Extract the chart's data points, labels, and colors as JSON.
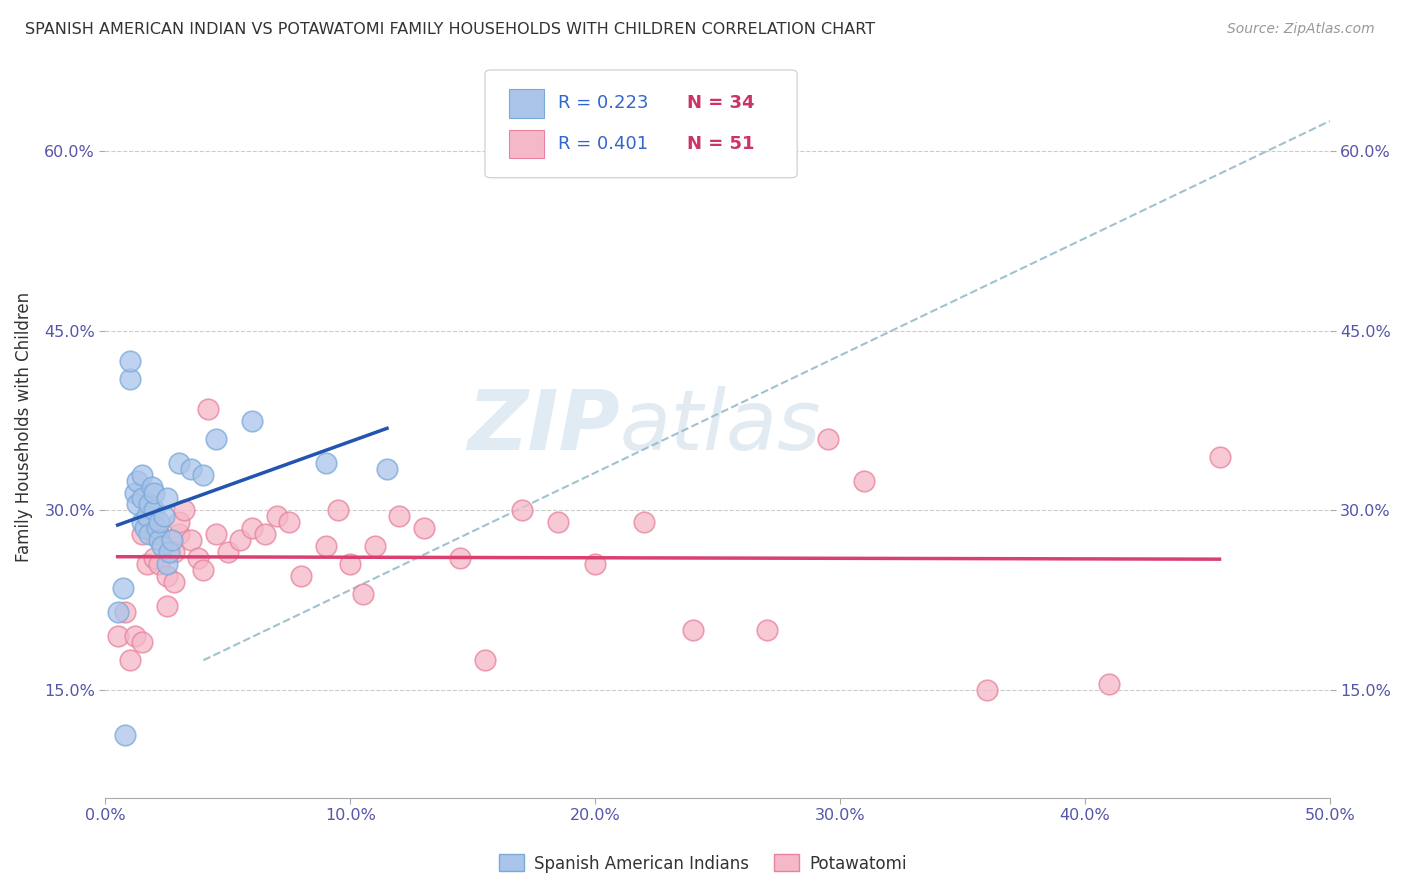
{
  "title": "SPANISH AMERICAN INDIAN VS POTAWATOMI FAMILY HOUSEHOLDS WITH CHILDREN CORRELATION CHART",
  "source": "Source: ZipAtlas.com",
  "ylabel": "Family Households with Children",
  "xmin": 0.0,
  "xmax": 0.5,
  "ymin": 0.06,
  "ymax": 0.68,
  "yticks": [
    0.15,
    0.3,
    0.45,
    0.6
  ],
  "ytick_labels": [
    "15.0%",
    "30.0%",
    "45.0%",
    "60.0%"
  ],
  "xticks": [
    0.0,
    0.1,
    0.2,
    0.3,
    0.4,
    0.5
  ],
  "xtick_labels": [
    "0.0%",
    "10.0%",
    "20.0%",
    "30.0%",
    "40.0%",
    "50.0%"
  ],
  "blue_color": "#aac4ea",
  "blue_edge": "#7aaad8",
  "pink_color": "#f5b8c8",
  "pink_edge": "#e8829e",
  "line_blue": "#2255b0",
  "line_pink": "#d94070",
  "dashed_color": "#90b8c8",
  "tick_color": "#5555aa",
  "R_blue": 0.223,
  "N_blue": 34,
  "R_pink": 0.401,
  "N_pink": 51,
  "legend_label_blue": "Spanish American Indians",
  "legend_label_pink": "Potawatomi",
  "watermark_zip": "ZIP",
  "watermark_atlas": "atlas",
  "blue_scatter_x": [
    0.005,
    0.007,
    0.008,
    0.01,
    0.01,
    0.012,
    0.013,
    0.013,
    0.015,
    0.015,
    0.015,
    0.016,
    0.017,
    0.018,
    0.018,
    0.019,
    0.02,
    0.02,
    0.021,
    0.022,
    0.022,
    0.023,
    0.024,
    0.025,
    0.025,
    0.026,
    0.027,
    0.03,
    0.035,
    0.04,
    0.045,
    0.06,
    0.09,
    0.115
  ],
  "blue_scatter_y": [
    0.215,
    0.235,
    0.113,
    0.41,
    0.425,
    0.315,
    0.325,
    0.305,
    0.29,
    0.31,
    0.33,
    0.285,
    0.295,
    0.28,
    0.305,
    0.32,
    0.3,
    0.315,
    0.285,
    0.275,
    0.29,
    0.27,
    0.295,
    0.255,
    0.31,
    0.265,
    0.275,
    0.34,
    0.335,
    0.33,
    0.36,
    0.375,
    0.34,
    0.335
  ],
  "pink_scatter_x": [
    0.005,
    0.008,
    0.01,
    0.012,
    0.015,
    0.015,
    0.017,
    0.018,
    0.02,
    0.02,
    0.022,
    0.022,
    0.025,
    0.025,
    0.028,
    0.028,
    0.03,
    0.03,
    0.032,
    0.035,
    0.038,
    0.04,
    0.042,
    0.045,
    0.05,
    0.055,
    0.06,
    0.065,
    0.07,
    0.075,
    0.08,
    0.09,
    0.095,
    0.1,
    0.105,
    0.11,
    0.12,
    0.13,
    0.145,
    0.155,
    0.17,
    0.185,
    0.2,
    0.22,
    0.24,
    0.27,
    0.295,
    0.31,
    0.36,
    0.41,
    0.455
  ],
  "pink_scatter_y": [
    0.195,
    0.215,
    0.175,
    0.195,
    0.19,
    0.28,
    0.255,
    0.295,
    0.26,
    0.28,
    0.28,
    0.255,
    0.245,
    0.22,
    0.24,
    0.265,
    0.28,
    0.29,
    0.3,
    0.275,
    0.26,
    0.25,
    0.385,
    0.28,
    0.265,
    0.275,
    0.285,
    0.28,
    0.295,
    0.29,
    0.245,
    0.27,
    0.3,
    0.255,
    0.23,
    0.27,
    0.295,
    0.285,
    0.26,
    0.175,
    0.3,
    0.29,
    0.255,
    0.29,
    0.2,
    0.2,
    0.36,
    0.325,
    0.15,
    0.155,
    0.345
  ]
}
